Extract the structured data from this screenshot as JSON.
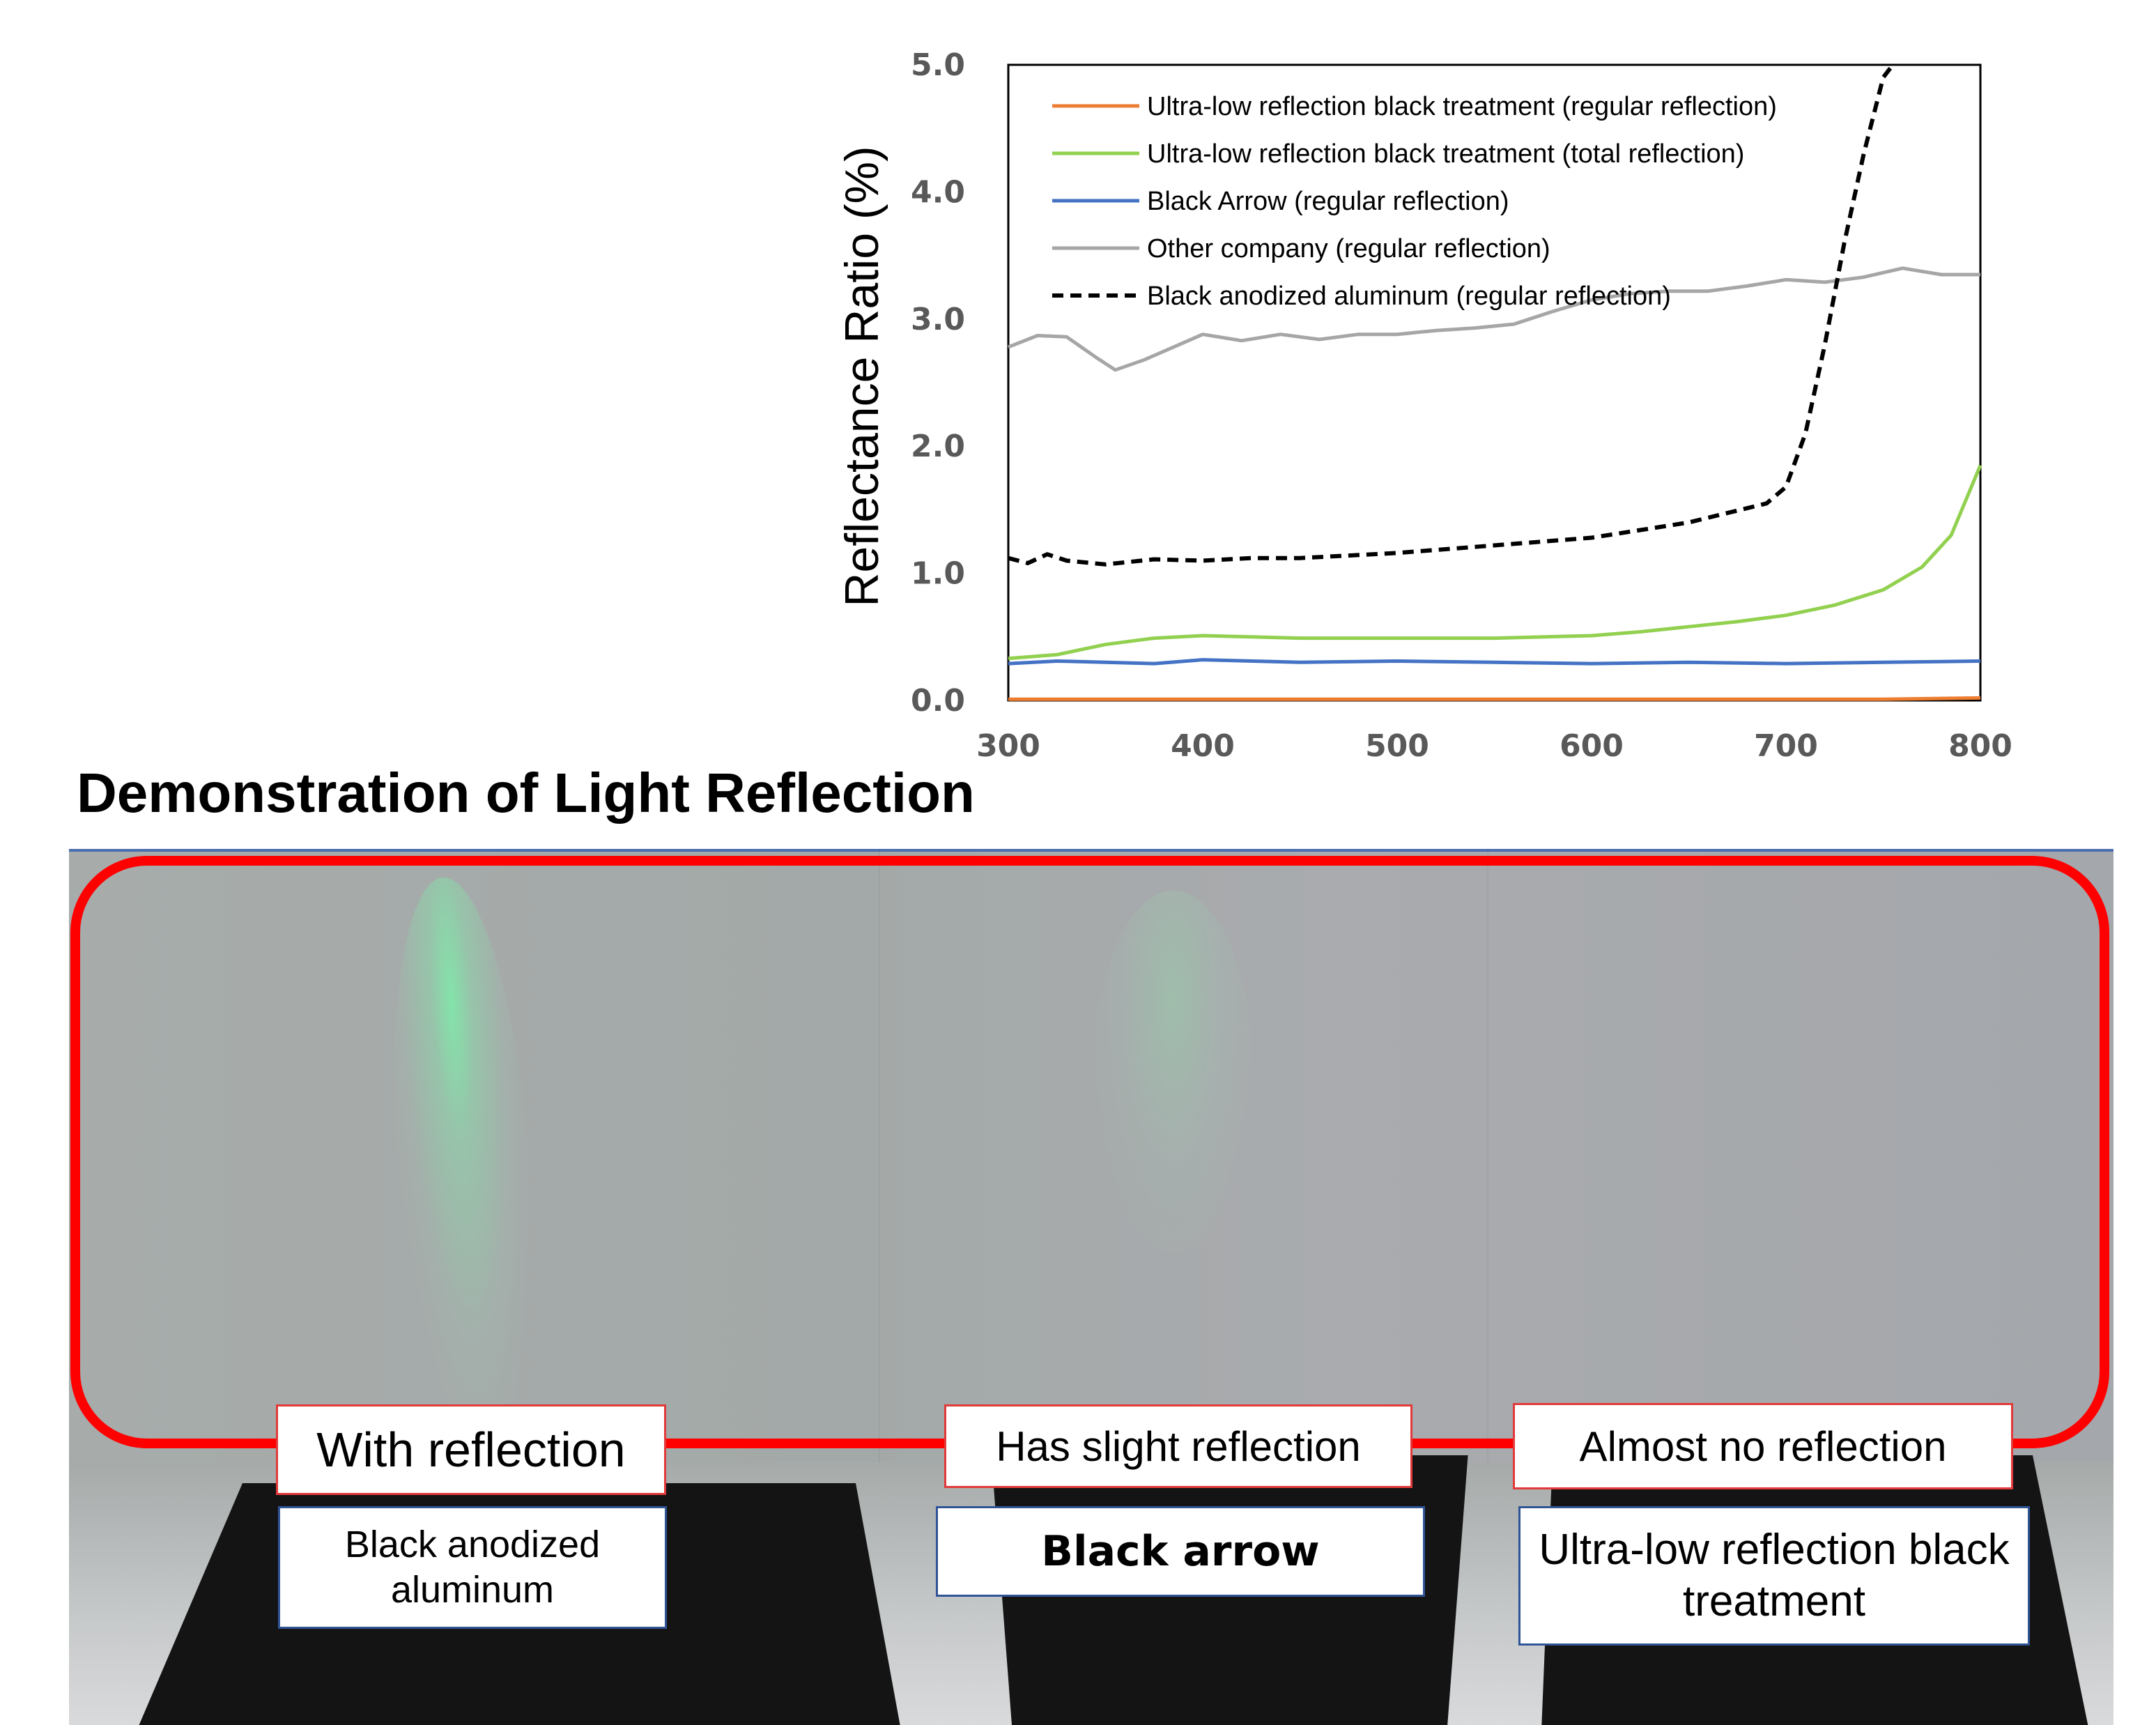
{
  "chart_data": {
    "type": "line",
    "title": "",
    "xlabel": "",
    "ylabel": "Reflectance Ratio (%)",
    "xlim": [
      300,
      800
    ],
    "ylim": [
      0,
      5
    ],
    "x_ticks": [
      "300",
      "400",
      "500",
      "600",
      "700",
      "800"
    ],
    "y_ticks": [
      "0.0",
      "1.0",
      "2.0",
      "3.0",
      "4.0",
      "5.0"
    ],
    "grid": false,
    "legend_position": "top-left inside plot",
    "series": [
      {
        "name": "Ultra-low reflection black treatment (regular reflection)",
        "color": "#ed7d31",
        "style": "solid",
        "x": [
          300,
          350,
          400,
          450,
          500,
          550,
          600,
          650,
          700,
          750,
          800
        ],
        "y": [
          0.01,
          0.01,
          0.01,
          0.01,
          0.01,
          0.01,
          0.01,
          0.01,
          0.01,
          0.01,
          0.02
        ]
      },
      {
        "name": "Ultra-low reflection black treatment (total reflection)",
        "color": "#92d050",
        "style": "solid",
        "x": [
          300,
          325,
          350,
          375,
          400,
          425,
          450,
          500,
          550,
          600,
          625,
          650,
          675,
          700,
          725,
          750,
          770,
          785,
          800
        ],
        "y": [
          0.33,
          0.36,
          0.44,
          0.49,
          0.51,
          0.5,
          0.49,
          0.49,
          0.49,
          0.51,
          0.54,
          0.58,
          0.62,
          0.67,
          0.75,
          0.87,
          1.05,
          1.3,
          1.85
        ]
      },
      {
        "name": "Black Arrow (regular reflection)",
        "color": "#4472c4",
        "style": "solid",
        "x": [
          300,
          325,
          350,
          375,
          400,
          450,
          500,
          550,
          600,
          650,
          700,
          750,
          800
        ],
        "y": [
          0.29,
          0.31,
          0.3,
          0.29,
          0.32,
          0.3,
          0.31,
          0.3,
          0.29,
          0.3,
          0.29,
          0.3,
          0.31
        ]
      },
      {
        "name": "Other company (regular reflection)",
        "color": "#a6a6a6",
        "style": "solid",
        "x": [
          300,
          315,
          330,
          345,
          355,
          370,
          385,
          400,
          420,
          440,
          460,
          480,
          500,
          520,
          540,
          560,
          580,
          600,
          620,
          640,
          660,
          680,
          700,
          720,
          740,
          760,
          780,
          800
        ],
        "y": [
          2.78,
          2.87,
          2.86,
          2.7,
          2.6,
          2.68,
          2.78,
          2.88,
          2.83,
          2.88,
          2.84,
          2.88,
          2.88,
          2.91,
          2.93,
          2.96,
          3.06,
          3.15,
          3.2,
          3.22,
          3.22,
          3.26,
          3.31,
          3.29,
          3.33,
          3.4,
          3.35,
          3.35
        ]
      },
      {
        "name": "Black anodized aluminum (regular reflection)",
        "color": "#000000",
        "style": "dashed",
        "x": [
          300,
          310,
          320,
          330,
          350,
          375,
          400,
          425,
          450,
          500,
          550,
          600,
          650,
          690,
          700,
          710,
          720,
          730,
          740,
          750,
          755
        ],
        "y": [
          1.12,
          1.08,
          1.15,
          1.1,
          1.07,
          1.11,
          1.1,
          1.12,
          1.12,
          1.16,
          1.22,
          1.28,
          1.4,
          1.55,
          1.68,
          2.1,
          2.8,
          3.6,
          4.3,
          4.9,
          5.0
        ]
      }
    ]
  },
  "demo": {
    "title": "Demonstration of Light Reflection",
    "reflection_labels": [
      "With reflection",
      "Has slight reflection",
      "Almost no reflection"
    ],
    "material_labels": [
      "Black anodized aluminum",
      "Black arrow",
      "Ultra-low reflection black treatment"
    ],
    "frame_color": "#ff0000"
  }
}
